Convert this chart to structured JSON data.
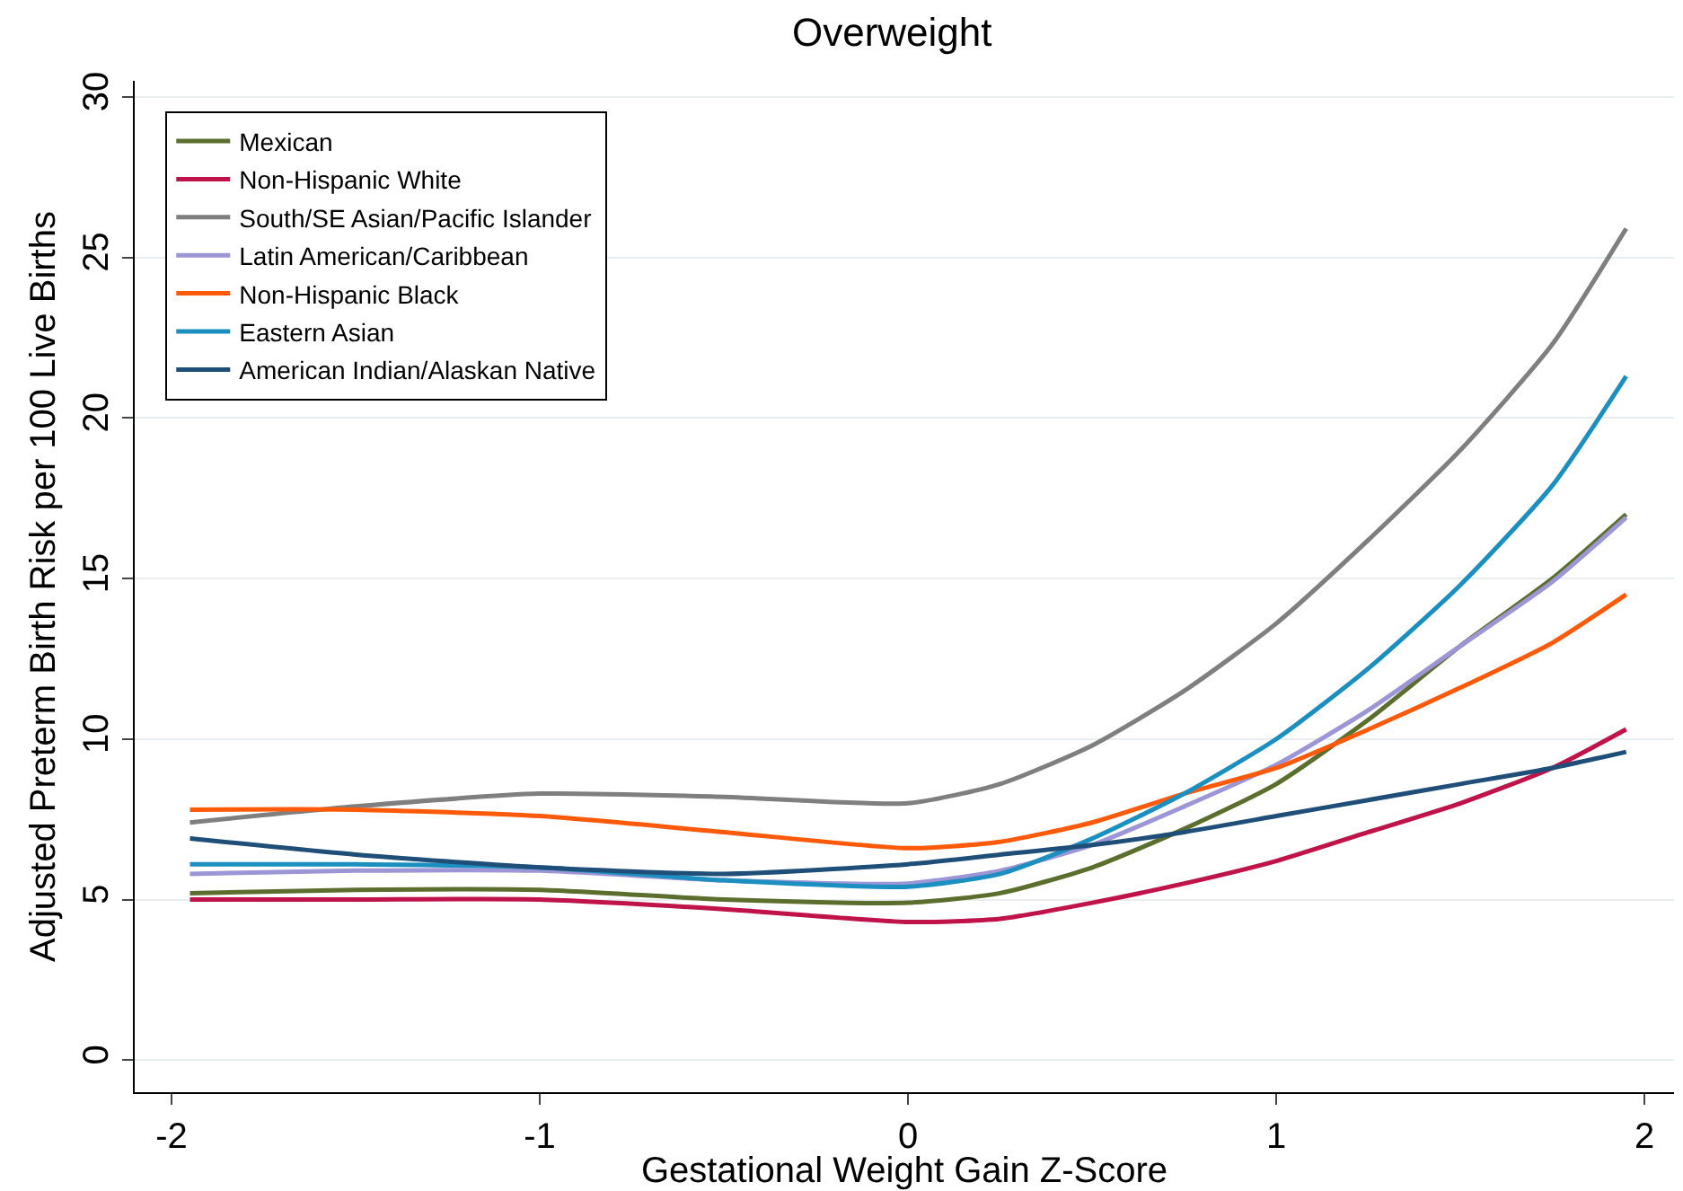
{
  "chart_data": {
    "type": "line",
    "title": "Overweight",
    "xlabel": "Gestational Weight Gain Z-Score",
    "ylabel": "Adjusted Preterm Birth Risk per 100 Live Births",
    "x": [
      -1.95,
      -1.5,
      -1,
      -0.5,
      0,
      0.25,
      0.5,
      0.75,
      1,
      1.25,
      1.5,
      1.75,
      1.95
    ],
    "series": [
      {
        "name": "Mexican",
        "color": "#5b6e2e",
        "values": [
          5.2,
          5.3,
          5.3,
          5.0,
          4.9,
          5.2,
          6.0,
          7.2,
          8.6,
          10.6,
          12.9,
          15.0,
          17.0
        ]
      },
      {
        "name": "Non-Hispanic White",
        "color": "#c0134a",
        "values": [
          5.0,
          5.0,
          5.0,
          4.7,
          4.3,
          4.4,
          4.9,
          5.5,
          6.2,
          7.1,
          8.0,
          9.1,
          10.3
        ]
      },
      {
        "name": "South/SE Asian/Pacific Islander",
        "color": "#7f7f7f",
        "values": [
          7.4,
          7.9,
          8.3,
          8.2,
          8.0,
          8.6,
          9.8,
          11.5,
          13.6,
          16.2,
          19.0,
          22.3,
          25.9
        ]
      },
      {
        "name": "Latin American/Caribbean",
        "color": "#9c95d6",
        "values": [
          5.8,
          5.9,
          5.9,
          5.6,
          5.5,
          5.9,
          6.7,
          7.9,
          9.2,
          10.9,
          12.9,
          14.9,
          16.9
        ]
      },
      {
        "name": "Non-Hispanic Black",
        "color": "#ff5a0a",
        "values": [
          7.8,
          7.8,
          7.6,
          7.1,
          6.6,
          6.8,
          7.4,
          8.3,
          9.1,
          10.3,
          11.6,
          13.0,
          14.5
        ]
      },
      {
        "name": "Eastern Asian",
        "color": "#1a8fc0",
        "values": [
          6.1,
          6.1,
          6.0,
          5.6,
          5.4,
          5.8,
          6.9,
          8.3,
          10.0,
          12.2,
          14.8,
          17.9,
          21.3
        ]
      },
      {
        "name": "American Indian/Alaskan Native",
        "color": "#1f4e79",
        "values": [
          6.9,
          6.4,
          6.0,
          5.8,
          6.1,
          6.4,
          6.7,
          7.1,
          7.6,
          8.1,
          8.6,
          9.1,
          9.6
        ]
      }
    ],
    "xlim": [
      -2.1,
      2.08
    ],
    "xticks": [
      -2,
      -1,
      0,
      1,
      2
    ],
    "ylim": [
      -1,
      30.5
    ],
    "yticks": [
      0,
      5,
      10,
      15,
      20,
      25,
      30
    ],
    "grid": "y",
    "legend": "top left",
    "marker": "none",
    "line_style": "solid"
  }
}
